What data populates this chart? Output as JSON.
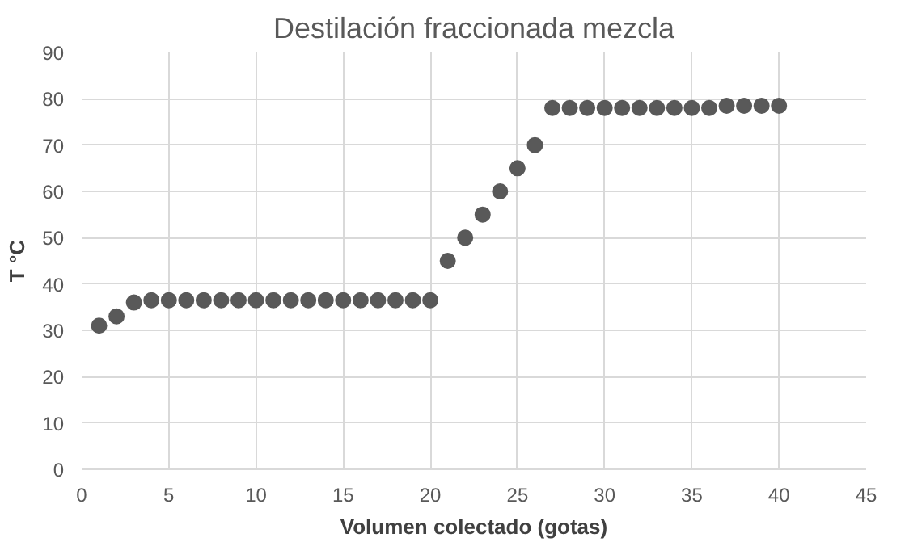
{
  "chart_data": {
    "type": "scatter",
    "title": "Destilación fraccionada mezcla",
    "xlabel": "Volumen colectado (gotas)",
    "ylabel": "T °C",
    "x": [
      1,
      2,
      3,
      4,
      5,
      6,
      7,
      8,
      9,
      10,
      11,
      12,
      13,
      14,
      15,
      16,
      17,
      18,
      19,
      20,
      21,
      22,
      23,
      24,
      25,
      26,
      27,
      28,
      29,
      30,
      31,
      32,
      33,
      34,
      35,
      36,
      37,
      38,
      39,
      40
    ],
    "series": [
      {
        "color": "#595959",
        "values": [
          31,
          33,
          36,
          36.5,
          36.5,
          36.5,
          36.5,
          36.5,
          36.5,
          36.5,
          36.5,
          36.5,
          36.5,
          36.5,
          36.5,
          36.5,
          36.5,
          36.5,
          36.5,
          36.5,
          45,
          50,
          55,
          60,
          65,
          70,
          78,
          78,
          78,
          78,
          78,
          78,
          78,
          78,
          78,
          78,
          78.5,
          78.5,
          78.5,
          78.5
        ]
      }
    ],
    "xlim": [
      0,
      45
    ],
    "xticks": [
      0,
      5,
      10,
      15,
      20,
      25,
      30,
      35,
      40,
      45
    ],
    "ylim": [
      0,
      90
    ],
    "yticks": [
      0,
      10,
      20,
      30,
      40,
      50,
      60,
      70,
      80,
      90
    ],
    "grid": true,
    "marker": "circle"
  }
}
